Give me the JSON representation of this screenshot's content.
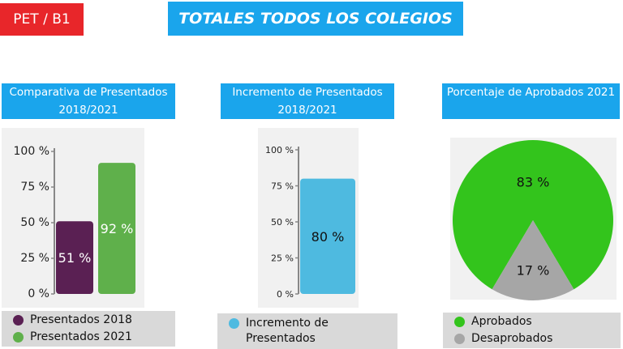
{
  "tag": "PET / B1",
  "title": "TOTALES TODOS LOS COLEGIOS",
  "colors": {
    "purple": "#5a2053",
    "green": "#5fb04b",
    "cyan": "#4ebae0",
    "pie_green": "#33c41c",
    "pie_gray": "#a6a6a6"
  },
  "chart_data": [
    {
      "type": "bar",
      "title": "Comparativa de Presentados 2018/2021",
      "categories": [
        "Presentados 2018",
        "Presentados 2021"
      ],
      "values": [
        51,
        92
      ],
      "value_labels": [
        "51 %",
        "92 %"
      ],
      "yticks": [
        "100 %",
        "75 %",
        "50 %",
        "25 %",
        "0 %"
      ],
      "ylim": [
        0,
        100
      ],
      "legend": [
        "Presentados 2018",
        "Presentados 2021"
      ]
    },
    {
      "type": "bar",
      "title": "Incremento de Presentados 2018/2021",
      "categories": [
        "Incremento de Presentados"
      ],
      "values": [
        80
      ],
      "value_labels": [
        "80 %"
      ],
      "yticks": [
        "100 %",
        "75 %",
        "50 %",
        "25 %",
        "0 %"
      ],
      "ylim": [
        0,
        100
      ],
      "legend": [
        "Incremento de",
        "Presentados"
      ]
    },
    {
      "type": "pie",
      "title": "Porcentaje de Aprobados 2021",
      "categories": [
        "Aprobados",
        "Desaprobados"
      ],
      "values": [
        83,
        17
      ],
      "value_labels": [
        "83 %",
        "17 %"
      ],
      "legend": [
        "Aprobados",
        "Desaprobados"
      ]
    }
  ]
}
